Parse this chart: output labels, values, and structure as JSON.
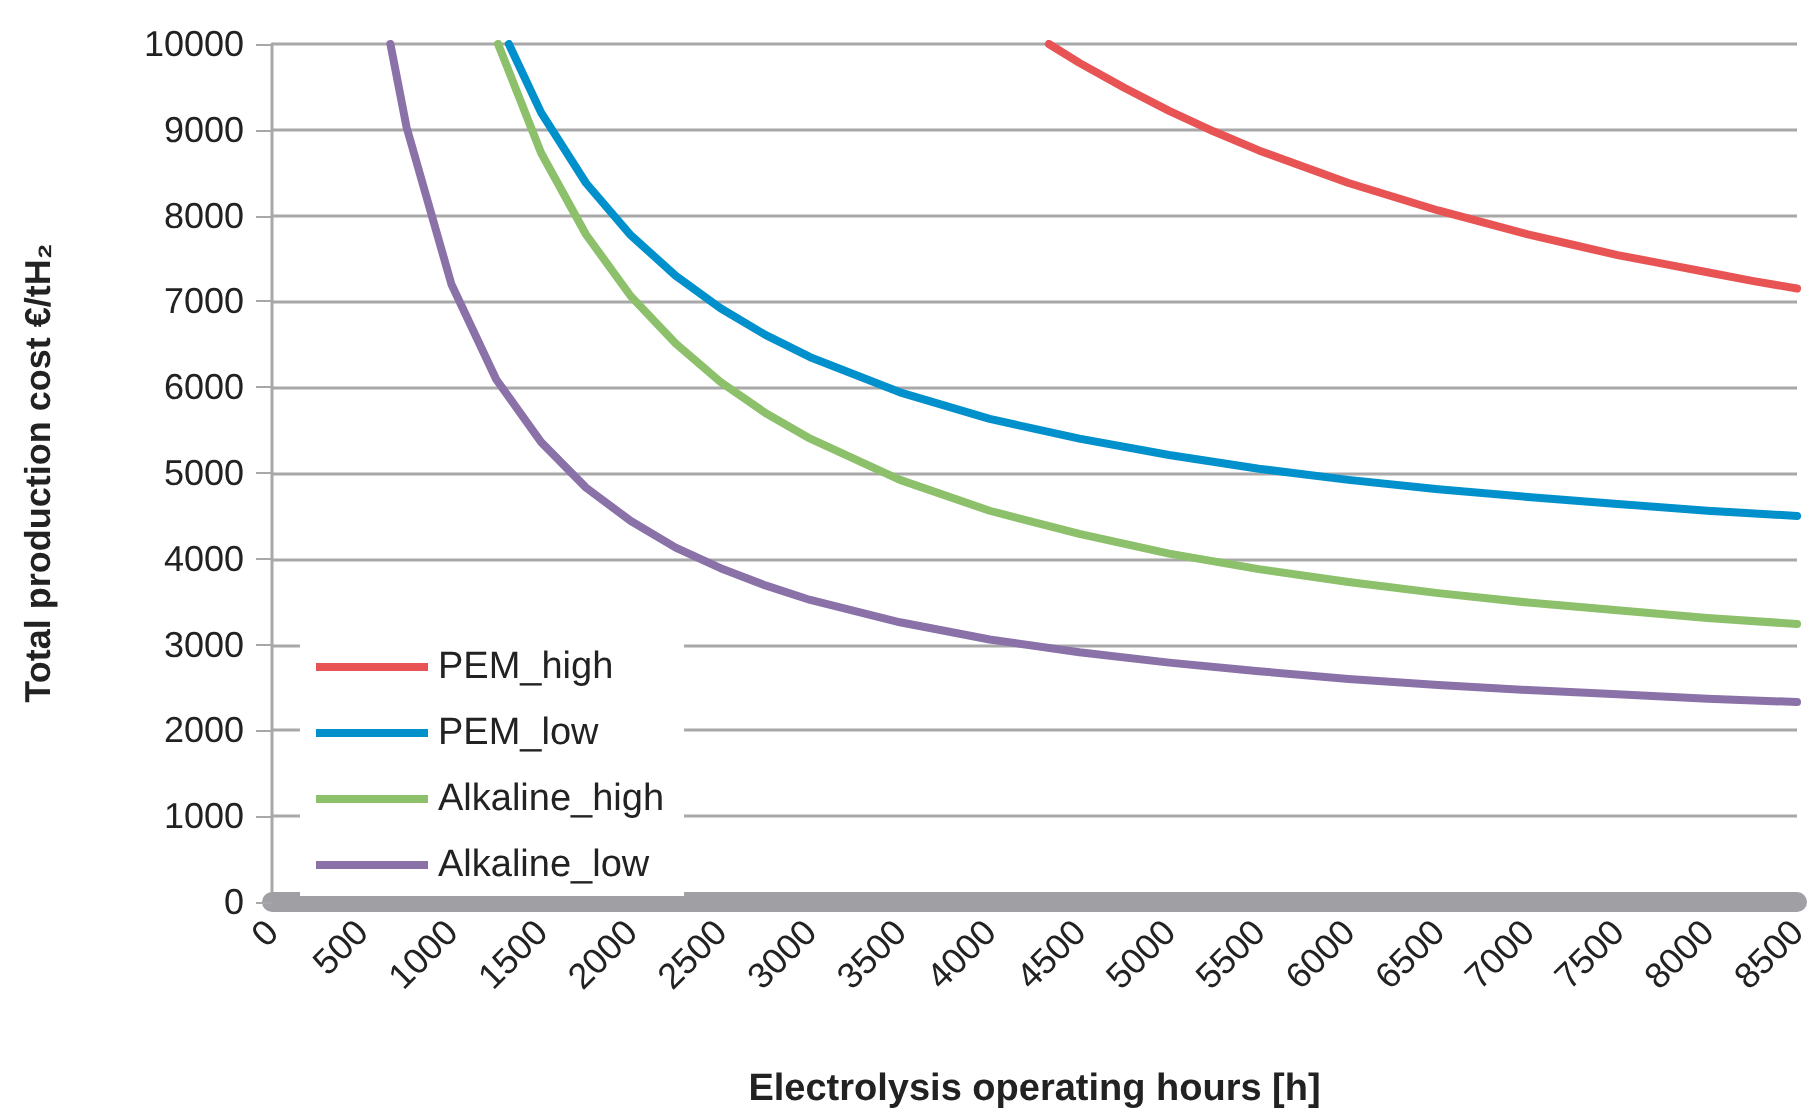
{
  "chart_data": {
    "type": "line",
    "xlabel": "Electrolysis operating hours [h]",
    "ylabel": "Total production cost €/tH₂",
    "xlim": [
      0,
      8500
    ],
    "xticks": [
      0,
      500,
      1000,
      1500,
      2000,
      2500,
      3000,
      3500,
      4000,
      4500,
      5000,
      5500,
      6000,
      6500,
      7000,
      7500,
      8000,
      8500
    ],
    "ylim": [
      0,
      10000
    ],
    "yticks": [
      0,
      1000,
      2000,
      3000,
      4000,
      5000,
      6000,
      7000,
      8000,
      9000,
      10000
    ],
    "grid": "y",
    "legend": "bottom left",
    "marker": "none",
    "line_style": "solid",
    "series": [
      {
        "name": "PEM_high",
        "color": "#e85454",
        "x": [
          4330,
          4500,
          4750,
          5000,
          5250,
          5500,
          5750,
          6000,
          6250,
          6500,
          6750,
          7000,
          7250,
          7500,
          7750,
          8000,
          8250,
          8500
        ],
        "values": [
          10000,
          9780,
          9490,
          9220,
          8980,
          8760,
          8570,
          8380,
          8220,
          8060,
          7920,
          7780,
          7660,
          7540,
          7440,
          7340,
          7240,
          7150
        ]
      },
      {
        "name": "PEM_low",
        "color": "#0090cc",
        "x": [
          1320,
          1500,
          1750,
          2000,
          2250,
          2500,
          2750,
          3000,
          3500,
          4000,
          4500,
          5000,
          5500,
          6000,
          6500,
          7000,
          7500,
          8000,
          8500
        ],
        "values": [
          10000,
          9200,
          8380,
          7770,
          7300,
          6920,
          6610,
          6350,
          5940,
          5630,
          5400,
          5210,
          5050,
          4920,
          4810,
          4720,
          4640,
          4560,
          4500
        ]
      },
      {
        "name": "Alkaline_high",
        "color": "#8cc06a",
        "x": [
          1260,
          1500,
          1750,
          2000,
          2250,
          2500,
          2750,
          3000,
          3500,
          4000,
          4500,
          5000,
          5500,
          6000,
          6500,
          7000,
          7500,
          8000,
          8500
        ],
        "values": [
          10000,
          8730,
          7780,
          7060,
          6510,
          6060,
          5700,
          5400,
          4920,
          4560,
          4290,
          4060,
          3880,
          3730,
          3600,
          3490,
          3400,
          3310,
          3240
        ]
      },
      {
        "name": "Alkaline_low",
        "color": "#8a72a8",
        "x": [
          660,
          750,
          1000,
          1250,
          1500,
          1750,
          2000,
          2250,
          2500,
          2750,
          3000,
          3500,
          4000,
          4500,
          5000,
          5500,
          6000,
          6500,
          7000,
          7500,
          8000,
          8500
        ],
        "values": [
          10000,
          9030,
          7200,
          6090,
          5360,
          4830,
          4440,
          4130,
          3890,
          3690,
          3520,
          3260,
          3060,
          2910,
          2790,
          2690,
          2600,
          2530,
          2470,
          2420,
          2370,
          2330
        ]
      }
    ]
  }
}
